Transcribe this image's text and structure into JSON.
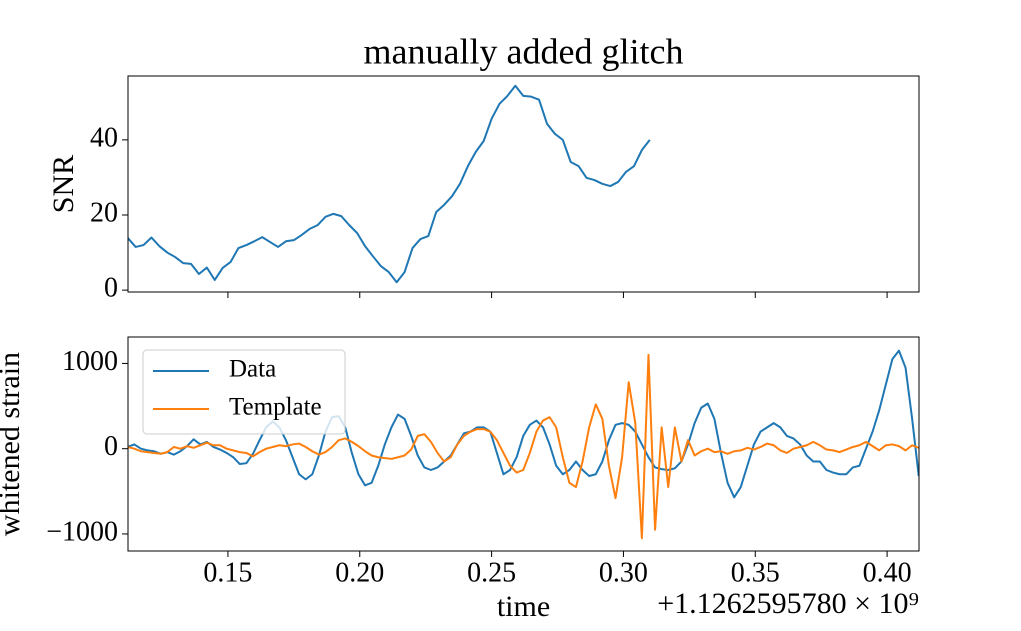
{
  "chart_data": [
    {
      "type": "line",
      "title": "manually added glitch",
      "ylabel": "SNR",
      "x": [
        0.112,
        0.115,
        0.118,
        0.121,
        0.124,
        0.127,
        0.13,
        0.133,
        0.136,
        0.139,
        0.142,
        0.145,
        0.148,
        0.151,
        0.154,
        0.157,
        0.16,
        0.163,
        0.166,
        0.169,
        0.172,
        0.175,
        0.178,
        0.181,
        0.184,
        0.187,
        0.19,
        0.193,
        0.196,
        0.199,
        0.202,
        0.205,
        0.208,
        0.211,
        0.214,
        0.217,
        0.22,
        0.223,
        0.226,
        0.229,
        0.232,
        0.235,
        0.238,
        0.241,
        0.244,
        0.247,
        0.25,
        0.253,
        0.256,
        0.259,
        0.262,
        0.265,
        0.268,
        0.271,
        0.274,
        0.277,
        0.28,
        0.283,
        0.286,
        0.289,
        0.292,
        0.295,
        0.298,
        0.301,
        0.304,
        0.307,
        0.31
      ],
      "series": [
        {
          "color": "#1f77b4",
          "values": [
            13.9,
            11.5,
            12,
            14,
            11.7,
            10,
            8.8,
            7.2,
            7,
            4.3,
            6,
            2.7,
            5.9,
            7.5,
            11.2,
            12,
            13,
            14.1,
            12.8,
            11.5,
            13,
            13.3,
            14.7,
            16.3,
            17.3,
            19.5,
            20.3,
            19.7,
            17.3,
            15.2,
            11.7,
            9,
            6.4,
            4.8,
            2.1,
            4.8,
            11.2,
            13.6,
            14.4,
            20.8,
            22.7,
            25,
            28.3,
            33,
            36.8,
            39.7,
            45.6,
            49.6,
            51.7,
            54.4,
            51.7,
            51.5,
            50.7,
            44.3,
            41.6,
            40,
            34.1,
            33,
            29.9,
            29.3,
            28.3,
            27.7,
            28.8,
            31.5,
            33,
            37.3,
            40
          ]
        }
      ],
      "xlim": [
        0.1121,
        0.4121
      ],
      "xticks": [
        0.15,
        0.2,
        0.25,
        0.3,
        0.35,
        0.4
      ],
      "ylim": [
        -0.5,
        57
      ],
      "yticks": [
        0,
        20,
        40
      ]
    },
    {
      "type": "line",
      "ylabel": "whitened strain",
      "xlabel": "time",
      "offset_label": "+1.1262595780 × 10⁹",
      "legend": "upper left",
      "x": [
        0.112,
        0.1145,
        0.117,
        0.1195,
        0.122,
        0.1245,
        0.127,
        0.1295,
        0.132,
        0.1345,
        0.137,
        0.1395,
        0.142,
        0.1445,
        0.147,
        0.1495,
        0.152,
        0.1545,
        0.157,
        0.1595,
        0.162,
        0.1645,
        0.167,
        0.1695,
        0.172,
        0.1745,
        0.177,
        0.1795,
        0.182,
        0.1845,
        0.187,
        0.1895,
        0.192,
        0.1945,
        0.197,
        0.1995,
        0.202,
        0.2045,
        0.207,
        0.2095,
        0.212,
        0.2145,
        0.217,
        0.2195,
        0.222,
        0.2245,
        0.227,
        0.2295,
        0.232,
        0.2345,
        0.237,
        0.2395,
        0.242,
        0.2445,
        0.247,
        0.2495,
        0.252,
        0.2545,
        0.257,
        0.2595,
        0.262,
        0.2645,
        0.267,
        0.2695,
        0.272,
        0.2745,
        0.277,
        0.2795,
        0.282,
        0.2845,
        0.287,
        0.2895,
        0.292,
        0.2945,
        0.297,
        0.2995,
        0.302,
        0.3045,
        0.307,
        0.3095,
        0.312,
        0.3145,
        0.317,
        0.3195,
        0.322,
        0.3245,
        0.327,
        0.3295,
        0.332,
        0.3345,
        0.337,
        0.3395,
        0.342,
        0.3445,
        0.347,
        0.3495,
        0.352,
        0.3545,
        0.357,
        0.3595,
        0.362,
        0.3645,
        0.367,
        0.3695,
        0.372,
        0.3745,
        0.377,
        0.3795,
        0.382,
        0.3845,
        0.387,
        0.3895,
        0.392,
        0.3945,
        0.397,
        0.3995,
        0.402,
        0.4045,
        0.407,
        0.4095,
        0.412
      ],
      "series": [
        {
          "name": "Data",
          "color": "#1f77b4",
          "values": [
            20,
            50,
            0,
            -20,
            -30,
            -60,
            -40,
            -70,
            -30,
            30,
            110,
            50,
            80,
            20,
            -10,
            -50,
            -100,
            -180,
            -170,
            -60,
            100,
            250,
            320,
            250,
            100,
            -100,
            -300,
            -360,
            -300,
            -80,
            200,
            370,
            380,
            250,
            -50,
            -300,
            -430,
            -400,
            -200,
            50,
            250,
            400,
            350,
            150,
            -80,
            -220,
            -250,
            -220,
            -150,
            -80,
            50,
            180,
            200,
            250,
            250,
            200,
            -50,
            -300,
            -250,
            -100,
            150,
            280,
            330,
            250,
            50,
            -200,
            -300,
            -250,
            -150,
            -250,
            -320,
            -300,
            -150,
            100,
            280,
            300,
            280,
            200,
            50,
            -100,
            -220,
            -240,
            -250,
            -230,
            -150,
            50,
            300,
            480,
            530,
            350,
            -50,
            -400,
            -570,
            -450,
            -200,
            50,
            200,
            250,
            300,
            250,
            150,
            120,
            50,
            -80,
            -150,
            -150,
            -250,
            -280,
            -300,
            -300,
            -220,
            -200,
            0,
            200,
            450,
            750,
            1050,
            1150,
            950,
            350,
            -320
          ]
        },
        {
          "name": "Template",
          "color": "#ff7f0e",
          "values": [
            20,
            0,
            -30,
            -40,
            -50,
            -60,
            -40,
            20,
            0,
            30,
            10,
            40,
            70,
            40,
            40,
            0,
            -20,
            -40,
            -50,
            -90,
            -40,
            0,
            20,
            40,
            30,
            50,
            60,
            20,
            -30,
            -70,
            -40,
            20,
            100,
            120,
            80,
            30,
            -30,
            -80,
            -100,
            -110,
            -120,
            -100,
            -80,
            -10,
            150,
            170,
            80,
            -50,
            -150,
            -100,
            50,
            150,
            200,
            230,
            230,
            200,
            100,
            -50,
            -200,
            -280,
            -250,
            -50,
            200,
            330,
            370,
            250,
            -100,
            -400,
            -450,
            -150,
            250,
            520,
            350,
            -200,
            -580,
            -100,
            780,
            300,
            -1050,
            1100,
            -950,
            250,
            -450,
            250,
            -150,
            100,
            -80,
            -30,
            0,
            -40,
            -30,
            -60,
            -30,
            -20,
            10,
            -10,
            20,
            60,
            40,
            -20,
            -50,
            0,
            20,
            40,
            80,
            40,
            -10,
            -20,
            -40,
            -10,
            20,
            40,
            80,
            30,
            -20,
            40,
            50,
            30,
            -20,
            40,
            10
          ]
        }
      ],
      "xlim": [
        0.1121,
        0.4121
      ],
      "xticks": [
        0.15,
        {
          "value": 0.2,
          "label": "0.20"
        },
        0.25,
        {
          "value": 0.3,
          "label": "0.30"
        },
        0.35,
        {
          "value": 0.4,
          "label": "0.40"
        }
      ],
      "ylim": [
        -1200,
        1310
      ],
      "yticks": [
        {
          "value": -1000,
          "label": "−1000"
        },
        0,
        1000
      ]
    }
  ]
}
